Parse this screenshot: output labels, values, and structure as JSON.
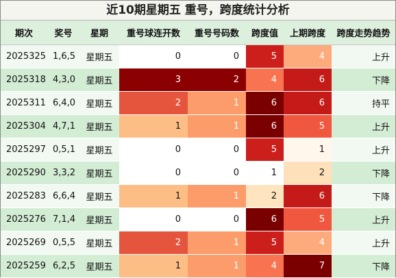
{
  "title": "近10期星期五 重号，跨度统计分析",
  "headers": [
    "期次",
    "奖号",
    "星期",
    "重号球连开数",
    "重号号码数",
    "跨度值",
    "上期跨度",
    "跨度走势趋势"
  ],
  "rows": [
    {
      "issue": "2025325",
      "nums": "1,6,5",
      "weekday": "星期五",
      "consec": 0,
      "repeat": 0,
      "span": 5,
      "prev_span": 4,
      "trend": "上升"
    },
    {
      "issue": "2025318",
      "nums": "4,3,0",
      "weekday": "星期五",
      "consec": 3,
      "repeat": 2,
      "span": 4,
      "prev_span": 6,
      "trend": "下降"
    },
    {
      "issue": "2025311",
      "nums": "6,4,0",
      "weekday": "星期五",
      "consec": 2,
      "repeat": 1,
      "span": 6,
      "prev_span": 6,
      "trend": "持平"
    },
    {
      "issue": "2025304",
      "nums": "4,7,1",
      "weekday": "星期五",
      "consec": 1,
      "repeat": 1,
      "span": 6,
      "prev_span": 5,
      "trend": "上升"
    },
    {
      "issue": "2025297",
      "nums": "0,5,1",
      "weekday": "星期五",
      "consec": 0,
      "repeat": 0,
      "span": 5,
      "prev_span": 1,
      "trend": "上升"
    },
    {
      "issue": "2025290",
      "nums": "3,3,2",
      "weekday": "星期五",
      "consec": 0,
      "repeat": 0,
      "span": 1,
      "prev_span": 2,
      "trend": "下降"
    },
    {
      "issue": "2025283",
      "nums": "6,6,4",
      "weekday": "星期五",
      "consec": 1,
      "repeat": 1,
      "span": 2,
      "prev_span": 6,
      "trend": "下降"
    },
    {
      "issue": "2025276",
      "nums": "7,1,4",
      "weekday": "星期五",
      "consec": 0,
      "repeat": 0,
      "span": 6,
      "prev_span": 5,
      "trend": "上升"
    },
    {
      "issue": "2025269",
      "nums": "0,5,5",
      "weekday": "星期五",
      "consec": 2,
      "repeat": 1,
      "span": 5,
      "prev_span": 4,
      "trend": "上升"
    },
    {
      "issue": "2025259",
      "nums": "6,2,5",
      "weekday": "星期五",
      "consec": 1,
      "repeat": 1,
      "span": 4,
      "prev_span": 7,
      "trend": "下降"
    }
  ],
  "heat_colors": {
    "consec": {
      "0": "#ffffff",
      "1": "#fdbe85",
      "2": "#e5553e",
      "3": "#8b0000"
    },
    "repeat": {
      "0": "#ffffff",
      "1": "#fc9c6b",
      "2": "#8b0000"
    },
    "span": {
      "1": "#ffffff",
      "2": "#fee5c0",
      "4": "#f87450",
      "5": "#cc1f1c",
      "6": "#7a0000"
    },
    "prev_span": {
      "1": "#fff6ec",
      "2": "#fee1bb",
      "4": "#fdab7c",
      "5": "#f0573f",
      "6": "#c41b18",
      "7": "#7a0000"
    }
  },
  "light_text_colors": [
    "#e5553e",
    "#8b0000",
    "#fc9c6b",
    "#f87450",
    "#cc1f1c",
    "#7a0000",
    "#fdab7c",
    "#f0573f",
    "#c41b18"
  ]
}
